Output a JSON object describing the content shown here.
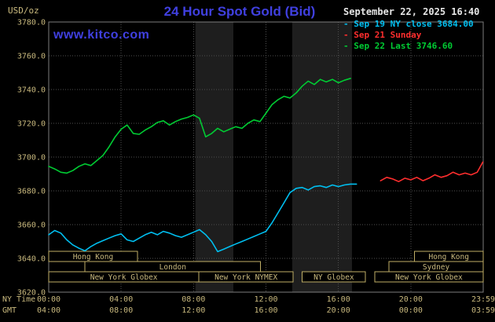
{
  "colors": {
    "background": "#000000",
    "title_blue": "#4040E0",
    "tan_text": "#C9B97E",
    "session_border": "#BFAE66",
    "grid": "#4F4F4F",
    "plot_border": "#7D7D7D",
    "band_fill": "#1E1E1E",
    "datetime_text": "#E6E6E6",
    "cyan": "#00BFF0",
    "red": "#FF2E2E",
    "green": "#00CC33"
  },
  "header": {
    "unit_label": "USD/oz",
    "title": "24 Hour Spot Gold (Bid)",
    "datetime": "September 22, 2025 16:40",
    "watermark": "www.kitco.com",
    "legend": [
      {
        "label": "- Sep 19 NY close 3684.00",
        "color": "#00BFF0"
      },
      {
        "label": "- Sep 21 Sunday",
        "color": "#FF2E2E"
      },
      {
        "label": "- Sep 22 Last 3746.60",
        "color": "#00CC33"
      }
    ]
  },
  "axes": {
    "y_tick_labels": [
      "3780.0",
      "3760.0",
      "3740.0",
      "3720.0",
      "3700.0",
      "3680.0",
      "3660.0",
      "3640.0",
      "3620.0"
    ],
    "y_tick_values": [
      3780,
      3760,
      3740,
      3720,
      3700,
      3680,
      3660,
      3640,
      3620
    ],
    "x_tick_hours": [
      0,
      4,
      8,
      12,
      16,
      20,
      24
    ],
    "x_rows": [
      {
        "label": "NY Time",
        "ticks": [
          "00:00",
          "04:00",
          "08:00",
          "12:00",
          "16:00",
          "20:00",
          "23:59"
        ]
      },
      {
        "label": "GMT",
        "ticks": [
          "04:00",
          "08:00",
          "12:00",
          "16:00",
          "20:00",
          "00:00",
          "03:59"
        ]
      }
    ]
  },
  "shaded_bands": [
    {
      "start_hour": 8.1,
      "end_hour": 10.2
    },
    {
      "start_hour": 13.45,
      "end_hour": 16.75
    }
  ],
  "sessions": [
    {
      "row": 0,
      "start_hour": 0.0,
      "end_hour": 4.9,
      "label": "Hong Kong"
    },
    {
      "row": 0,
      "start_hour": 20.2,
      "end_hour": 24.0,
      "label": "Hong Kong"
    },
    {
      "row": 1,
      "start_hour": 2.0,
      "end_hour": 11.7,
      "label": "London"
    },
    {
      "row": 1,
      "start_hour": 18.8,
      "end_hour": 24.0,
      "label": "Sydney"
    },
    {
      "row": 2,
      "start_hour": 0.0,
      "end_hour": 8.3,
      "label": "New York Globex"
    },
    {
      "row": 2,
      "start_hour": 8.3,
      "end_hour": 13.5,
      "label": "New York NYMEX"
    },
    {
      "row": 2,
      "start_hour": 14.0,
      "end_hour": 17.5,
      "label": "NY Globex"
    },
    {
      "row": 2,
      "start_hour": 18.0,
      "end_hour": 24.0,
      "label": "New York Globex"
    }
  ],
  "chart_data": {
    "type": "line",
    "title": "24 Hour Spot Gold (Bid)",
    "xlabel": "NY Time",
    "ylabel": "USD/oz",
    "xlim": [
      0,
      24
    ],
    "ylim": [
      3620,
      3780
    ],
    "grid": true,
    "legend_position": "top-right",
    "ny_close_sep19": 3684.0,
    "last_sep22": 3746.6,
    "series": [
      {
        "id": "sep19",
        "name": "Sep 19 NY close 3684.00",
        "color": "#00BFF0",
        "x": [
          0,
          0.33,
          0.67,
          1,
          1.33,
          1.67,
          2,
          2.33,
          2.67,
          3,
          3.33,
          3.67,
          4,
          4.33,
          4.67,
          5,
          5.33,
          5.67,
          6,
          6.33,
          6.67,
          7,
          7.33,
          7.67,
          8,
          8.33,
          8.67,
          9,
          9.33,
          9.67,
          10,
          10.33,
          10.67,
          11,
          11.33,
          11.67,
          12,
          12.33,
          12.67,
          13,
          13.33,
          13.67,
          14,
          14.33,
          14.67,
          15,
          15.33,
          15.67,
          16,
          16.33,
          16.67,
          17
        ],
        "y": [
          3654,
          3656.5,
          3655,
          3651,
          3648,
          3646,
          3644.5,
          3647,
          3649,
          3650.5,
          3652,
          3653.5,
          3654.5,
          3651,
          3650,
          3652,
          3654,
          3655.5,
          3654,
          3656,
          3655,
          3653.5,
          3652.5,
          3654,
          3655.5,
          3657,
          3654,
          3650,
          3644,
          3645.5,
          3647,
          3648.5,
          3650,
          3651.5,
          3653,
          3654.5,
          3656,
          3661,
          3667,
          3673,
          3679,
          3681.5,
          3682,
          3680.5,
          3682.5,
          3683,
          3682,
          3683.5,
          3682.5,
          3683.5,
          3684,
          3684
        ]
      },
      {
        "id": "sep21",
        "name": "Sep 21 Sunday",
        "color": "#FF2E2E",
        "x": [
          18.33,
          18.67,
          19,
          19.33,
          19.67,
          20,
          20.33,
          20.67,
          21,
          21.33,
          21.67,
          22,
          22.33,
          22.67,
          23,
          23.33,
          23.67,
          23.98
        ],
        "y": [
          3686,
          3688,
          3687,
          3685.5,
          3687.5,
          3686.5,
          3688,
          3686,
          3687.5,
          3689.5,
          3688,
          3689,
          3691,
          3689.5,
          3690.5,
          3689.5,
          3691,
          3697
        ]
      },
      {
        "id": "sep22",
        "name": "Sep 22 Last 3746.60",
        "color": "#00CC33",
        "x": [
          0,
          0.33,
          0.67,
          1,
          1.33,
          1.67,
          2,
          2.33,
          2.67,
          3,
          3.33,
          3.67,
          4,
          4.33,
          4.67,
          5,
          5.33,
          5.67,
          6,
          6.33,
          6.67,
          7,
          7.33,
          7.67,
          8,
          8.33,
          8.67,
          9,
          9.33,
          9.67,
          10,
          10.33,
          10.67,
          11,
          11.33,
          11.67,
          12,
          12.33,
          12.67,
          13,
          13.33,
          13.67,
          14,
          14.33,
          14.67,
          15,
          15.33,
          15.67,
          16,
          16.33,
          16.67
        ],
        "y": [
          3694.5,
          3693,
          3691,
          3690.5,
          3692,
          3694.5,
          3696,
          3695,
          3698,
          3701,
          3706,
          3712,
          3716.5,
          3719,
          3714,
          3713.5,
          3716,
          3718,
          3720.5,
          3721.5,
          3719,
          3721,
          3722.5,
          3723.5,
          3725,
          3723,
          3712,
          3714,
          3717,
          3715,
          3716.5,
          3718,
          3717,
          3720,
          3722,
          3721,
          3726,
          3731,
          3734,
          3736,
          3735,
          3738,
          3742,
          3745,
          3743,
          3746,
          3744.5,
          3746,
          3744,
          3745.5,
          3746.6
        ]
      }
    ]
  }
}
